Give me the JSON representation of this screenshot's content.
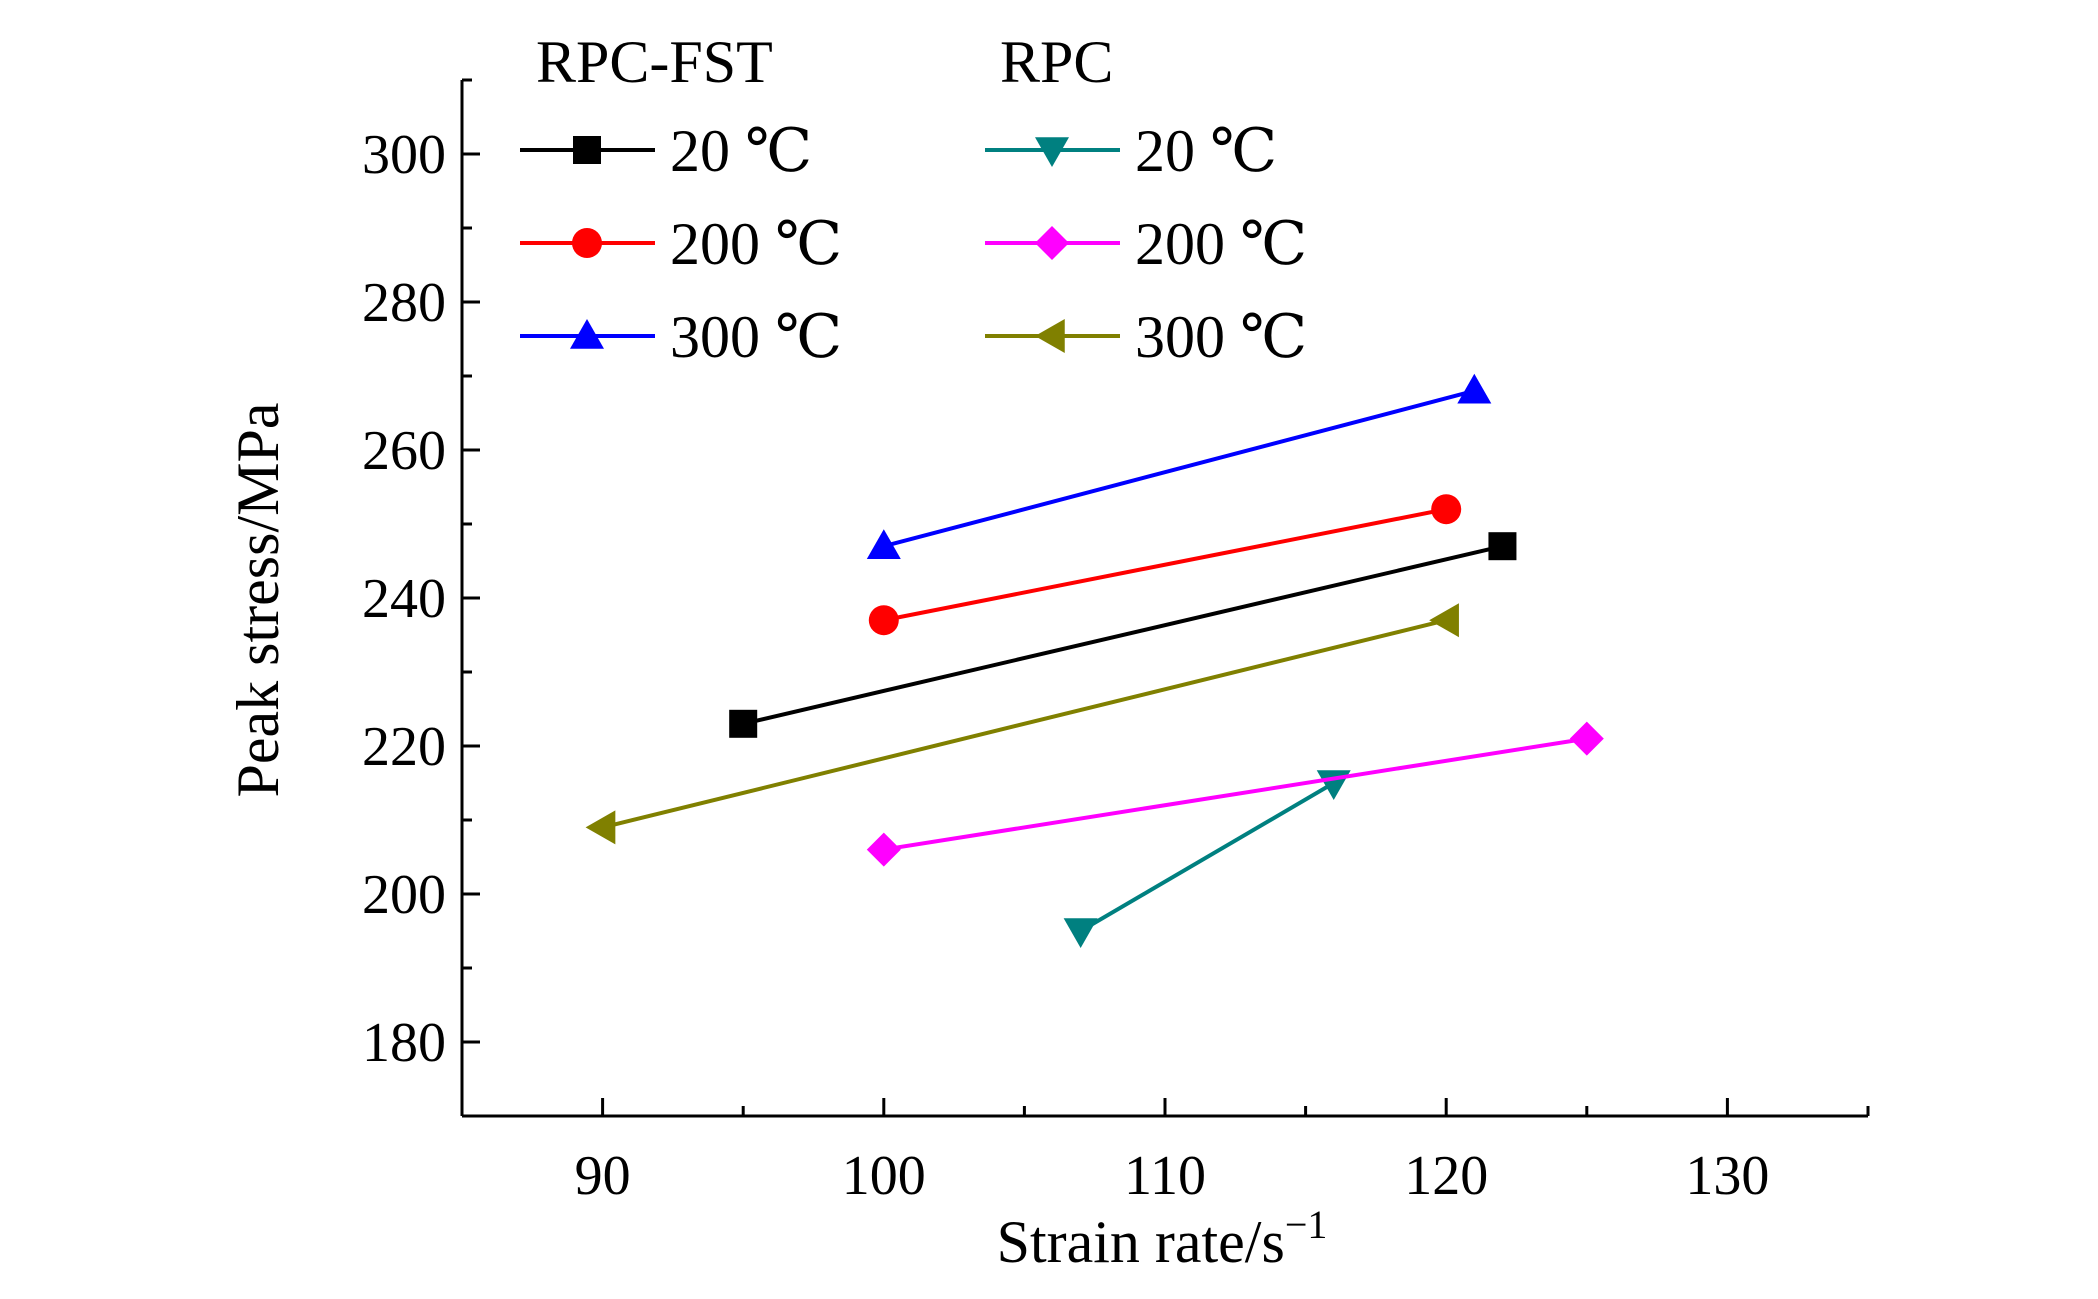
{
  "chart_data": {
    "type": "line",
    "title": "",
    "xlabel": "Strain rate/s",
    "xlabel_superscript": "−1",
    "ylabel": "Peak stress/MPa",
    "xlim": [
      85,
      135
    ],
    "ylim": [
      170,
      310
    ],
    "xticks": [
      "90",
      "100",
      "110",
      "120",
      "130"
    ],
    "yticks": [
      "180",
      "200",
      "220",
      "240",
      "260",
      "280",
      "300"
    ],
    "grid": false,
    "legend_placement": "top-left",
    "legend_groups": [
      "RPC-FST",
      "RPC"
    ],
    "series": [
      {
        "group": "RPC-FST",
        "name": "20 ℃",
        "color": "#000000",
        "marker": "square",
        "x": [
          95,
          122
        ],
        "y": [
          223,
          247
        ]
      },
      {
        "group": "RPC-FST",
        "name": "200 ℃",
        "color": "#ff0000",
        "marker": "circle",
        "x": [
          100,
          120
        ],
        "y": [
          237,
          252
        ]
      },
      {
        "group": "RPC-FST",
        "name": "300 ℃",
        "color": "#0000ff",
        "marker": "triangle-up",
        "x": [
          100,
          121
        ],
        "y": [
          247,
          268
        ]
      },
      {
        "group": "RPC",
        "name": "20 ℃",
        "color": "#008080",
        "marker": "triangle-down",
        "x": [
          107,
          116
        ],
        "y": [
          195,
          215
        ]
      },
      {
        "group": "RPC",
        "name": "200 ℃",
        "color": "#ff00ff",
        "marker": "diamond",
        "x": [
          100,
          125
        ],
        "y": [
          206,
          221
        ]
      },
      {
        "group": "RPC",
        "name": "300 ℃",
        "color": "#808000",
        "marker": "triangle-left",
        "x": [
          90,
          120
        ],
        "y": [
          209,
          237
        ]
      }
    ]
  }
}
